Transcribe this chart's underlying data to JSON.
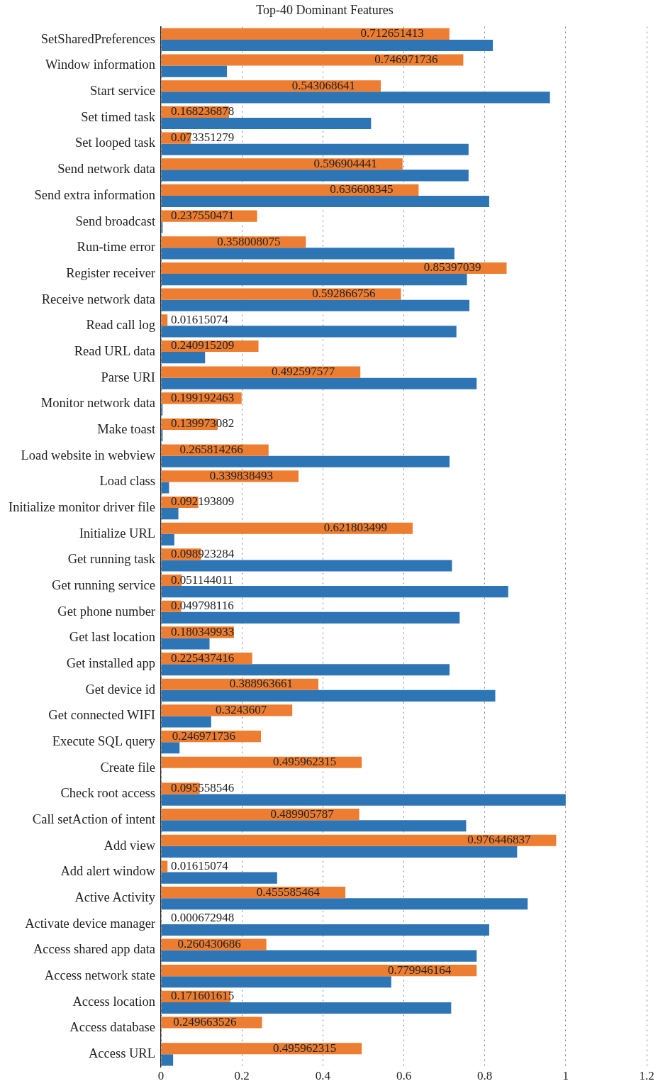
{
  "chart_data": {
    "type": "bar",
    "orientation": "horizontal",
    "title": "Top-40 Dominant Features",
    "categories": [
      "SetSharedPreferences",
      "Window information",
      "Start service",
      "Set timed task",
      "Set looped task",
      "Send network data",
      "Send extra information",
      "Send broadcast",
      "Run-time error",
      "Register receiver",
      "Receive network data",
      "Read call log",
      "Read URL data",
      "Parse URI",
      "Monitor network data",
      "Make toast",
      "Load website in webview",
      "Load class",
      "Initialize monitor driver file",
      "Initialize URL",
      "Get running task",
      "Get running service",
      "Get phone number",
      "Get last location",
      "Get installed app",
      "Get device id",
      "Get connected WIFI",
      "Execute SQL query",
      "Create file",
      "Check root access",
      "Call setAction of intent",
      "Add view",
      "Add alert window",
      "Active Activity",
      "Activate device manager",
      "Access shared app data",
      "Access network state",
      "Access location",
      "Access database",
      "Access URL"
    ],
    "series": [
      {
        "color": "#ed7d31",
        "values": [
          0.712651413,
          0.746971736,
          0.543068641,
          0.168236878,
          0.073351279,
          0.596904441,
          0.636608345,
          0.237550471,
          0.358008075,
          0.85397039,
          0.592866756,
          0.01615074,
          0.240915209,
          0.492597577,
          0.199192463,
          0.139973082,
          0.265814266,
          0.339838493,
          0.092193809,
          0.621803499,
          0.098923284,
          0.051144011,
          0.049798116,
          0.180349933,
          0.225437416,
          0.388963661,
          0.3243607,
          0.246971736,
          0.495962315,
          0.095558546,
          0.489905787,
          0.976446837,
          0.01615074,
          0.455585464,
          0.000672948,
          0.260430686,
          0.779946164,
          0.171601615,
          0.249663526,
          0.495962315
        ],
        "value_labels": [
          "0.712651413",
          "0.746971736",
          "0.543068641",
          "0.168236878",
          "0.073351279",
          "0.596904441",
          "0.636608345",
          "0.237550471",
          "0.358008075",
          "0.85397039",
          "0.592866756",
          "0.01615074",
          "0.240915209",
          "0.492597577",
          "0.199192463",
          "0.139973082",
          "0.265814266",
          "0.339838493",
          "0.092193809",
          "0.621803499",
          "0.098923284",
          "0.051144011",
          "0.049798116",
          "0.180349933",
          "0.225437416",
          "0.388963661",
          "0.3243607",
          "0.246971736",
          "0.495962315",
          "0.095558546",
          "0.489905787",
          "0.976446837",
          "0.01615074",
          "0.455585464",
          "0.000672948",
          "0.260430686",
          "0.779946164",
          "0.171601615",
          "0.249663526",
          "0.495962315"
        ]
      },
      {
        "color": "#2e75b6",
        "values": [
          0.82,
          0.163,
          0.961,
          0.519,
          0.76,
          0.76,
          0.811,
          0.004,
          0.725,
          0.756,
          0.762,
          0.73,
          0.109,
          0.78,
          0.004,
          0.004,
          0.713,
          0.02,
          0.043,
          0.033,
          0.719,
          0.858,
          0.738,
          0.12,
          0.713,
          0.826,
          0.124,
          0.046,
          0,
          1.0,
          0.754,
          0.88,
          0.287,
          0.906,
          0.811,
          0.78,
          0.569,
          0.717,
          0,
          0.03
        ]
      }
    ],
    "xlim": [
      0,
      1.2
    ],
    "xticks": [
      0,
      0.2,
      0.4,
      0.6,
      0.8,
      1,
      1.2
    ],
    "grid": "x",
    "legend": false
  }
}
